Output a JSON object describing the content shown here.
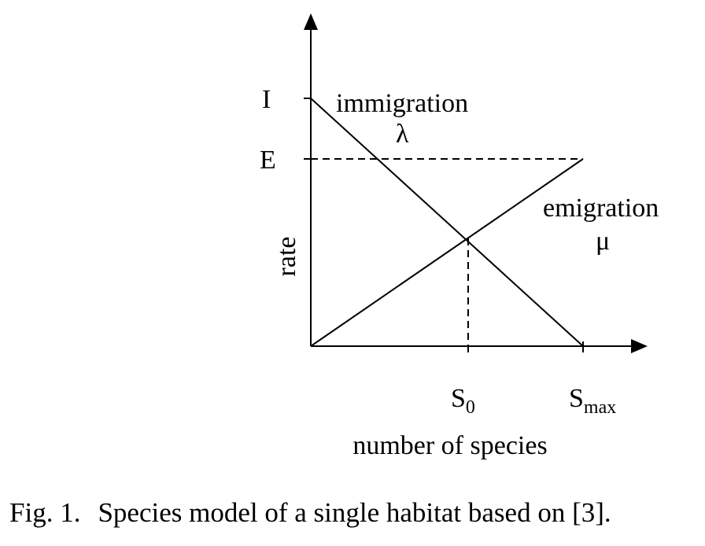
{
  "diagram": {
    "y_axis_label": "rate",
    "x_axis_label": "number of species",
    "y_ticks": {
      "I": "I",
      "E": "E"
    },
    "x_ticks": {
      "s0_base": "S",
      "s0_sub": "0",
      "smax_base": "S",
      "smax_sub": "max"
    },
    "immigration": {
      "label": "immigration",
      "symbol": "λ"
    },
    "emigration": {
      "label": "emigration",
      "symbol": "μ"
    },
    "line_color": "#000000"
  },
  "caption": {
    "figure_label": "Fig. 1.",
    "text": "Species model of a single habitat based on [3]."
  }
}
